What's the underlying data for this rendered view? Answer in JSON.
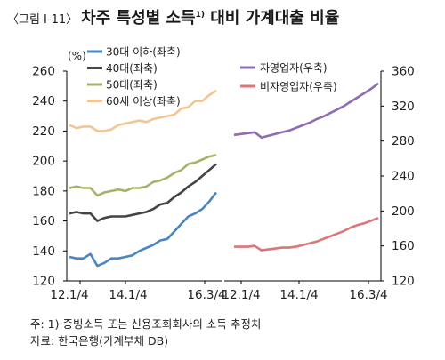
{
  "title": {
    "number": "〈그림 Ⅰ-11〉",
    "main": "차주 특성별 소득",
    "superscript": "1)",
    "rest": " 대비 가계대출 비율"
  },
  "notes": {
    "note": "주: 1) 증빙소득 또는 신용조회회사의 소득 추정치",
    "source": "자료: 한국은행(가계부채 DB)"
  },
  "chart_data": [
    {
      "type": "line",
      "panel": "left",
      "unit": "(%)",
      "xlabels": [
        "12.1/4",
        "14.1/4",
        "16.3/4"
      ],
      "yticks": [
        "120",
        "140",
        "160",
        "180",
        "200",
        "220",
        "240",
        "260"
      ],
      "ylim": [
        120,
        260
      ],
      "grid": false,
      "legend_position": "top-left",
      "series": [
        {
          "name": "30대 이하(좌축)",
          "color": "#4a86c0",
          "values": [
            136,
            135,
            135,
            138,
            130,
            132,
            135,
            135,
            136,
            137,
            140,
            142,
            144,
            147,
            148,
            153,
            158,
            163,
            165,
            168,
            173,
            179
          ]
        },
        {
          "name": "40대(좌축)",
          "color": "#444444",
          "values": [
            165,
            166,
            165,
            165,
            160,
            162,
            163,
            163,
            163,
            164,
            165,
            166,
            168,
            171,
            172,
            176,
            179,
            183,
            186,
            190,
            194,
            198
          ]
        },
        {
          "name": "50대(좌축)",
          "color": "#a3b568",
          "values": [
            182,
            183,
            182,
            182,
            177,
            179,
            180,
            181,
            180,
            182,
            182,
            183,
            186,
            187,
            189,
            192,
            194,
            198,
            199,
            201,
            203,
            204
          ]
        },
        {
          "name": "60세 이상(좌축)",
          "color": "#f3c691",
          "values": [
            224,
            222,
            223,
            223,
            220,
            220,
            221,
            224,
            225,
            226,
            227,
            226,
            228,
            229,
            230,
            231,
            235,
            236,
            240,
            240,
            244,
            247
          ]
        }
      ]
    },
    {
      "type": "line",
      "panel": "right",
      "xlabels": [
        "12.1/4",
        "14.1/4",
        "16.3/4"
      ],
      "yticks": [
        "120",
        "160",
        "200",
        "240",
        "280",
        "320",
        "360"
      ],
      "ylim": [
        120,
        360
      ],
      "grid": false,
      "legend_position": "top-left",
      "series": [
        {
          "name": "자영업자(우축)",
          "color": "#8e6bb3",
          "values": [
            287,
            288,
            289,
            290,
            284,
            286,
            288,
            290,
            292,
            295,
            298,
            301,
            305,
            308,
            312,
            316,
            320,
            325,
            330,
            335,
            340,
            346
          ]
        },
        {
          "name": "비자영업자(우축)",
          "color": "#d9777a",
          "values": [
            159,
            159,
            159,
            160,
            155,
            156,
            157,
            158,
            158,
            159,
            161,
            163,
            165,
            168,
            171,
            174,
            177,
            181,
            184,
            186,
            189,
            192
          ]
        }
      ]
    }
  ]
}
